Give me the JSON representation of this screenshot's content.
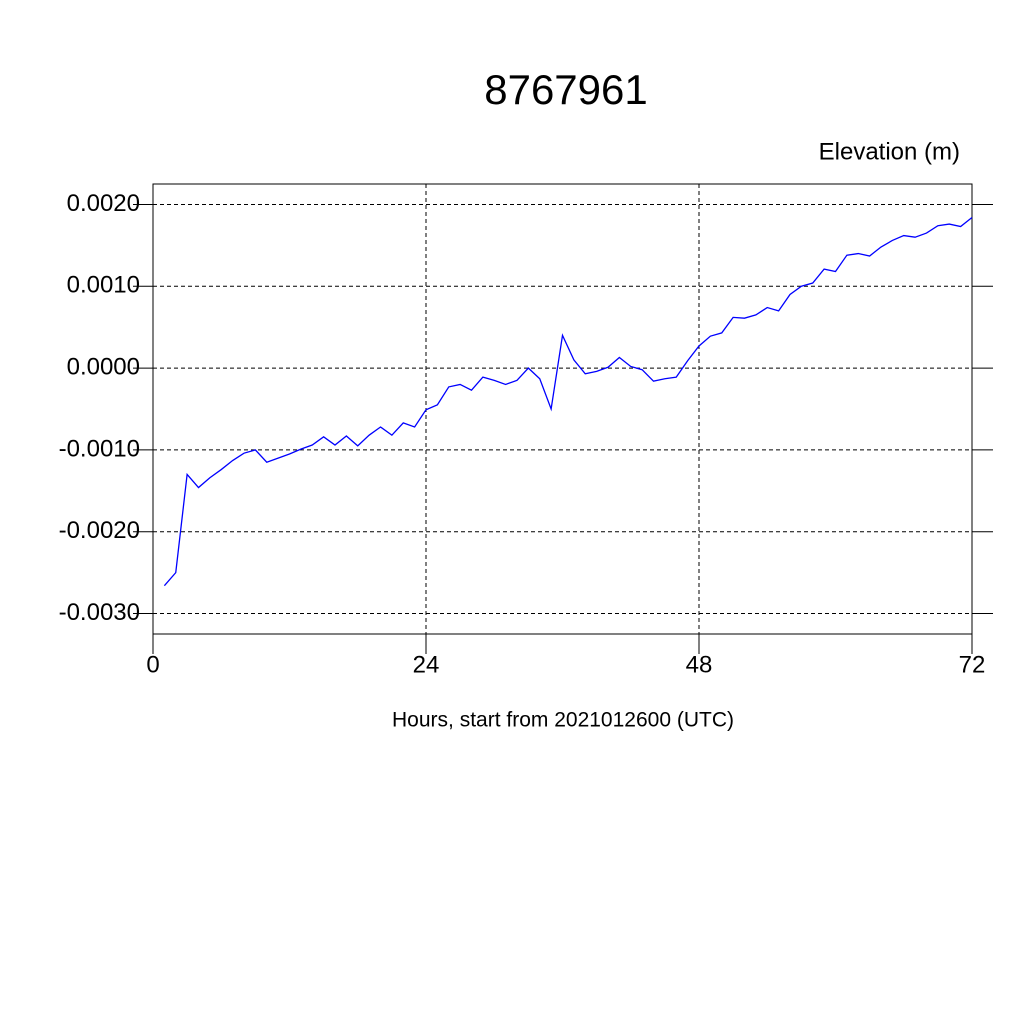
{
  "chart_data": {
    "type": "line",
    "title": "8767961",
    "y_label": "Elevation (m)",
    "x_label": "Hours, start from 2021012600 (UTC)",
    "x": [
      1,
      2,
      3,
      4,
      5,
      6,
      7,
      8,
      9,
      10,
      11,
      12,
      13,
      14,
      15,
      16,
      17,
      18,
      19,
      20,
      21,
      22,
      23,
      24,
      25,
      26,
      27,
      28,
      29,
      30,
      31,
      32,
      33,
      34,
      35,
      36,
      37,
      38,
      39,
      40,
      41,
      42,
      43,
      44,
      45,
      46,
      47,
      48,
      49,
      50,
      51,
      52,
      53,
      54,
      55,
      56,
      57,
      58,
      59,
      60,
      61,
      62,
      63,
      64,
      65,
      66,
      67,
      68,
      69,
      70,
      71,
      72
    ],
    "series": [
      {
        "color": "#0000ff",
        "values": [
          -0.00266,
          -0.0025,
          -0.0013,
          -0.00146,
          -0.00134,
          -0.00124,
          -0.00113,
          -0.00104,
          -0.001,
          -0.00115,
          -0.0011,
          -0.00105,
          -0.00099,
          -0.00094,
          -0.00084,
          -0.00094,
          -0.00083,
          -0.00095,
          -0.00082,
          -0.00072,
          -0.00082,
          -0.00067,
          -0.00072,
          -0.00051,
          -0.00045,
          -0.00023,
          -0.0002,
          -0.00027,
          -0.00011,
          -0.00015,
          -0.0002,
          -0.00015,
          0,
          -0.00013,
          -0.0005,
          0.0004,
          0.0001,
          -7e-05,
          -4e-05,
          1e-05,
          0.00013,
          2e-05,
          -2e-05,
          -0.00016,
          -0.00013,
          -0.00011,
          9e-05,
          0.00027,
          0.00039,
          0.00043,
          0.00062,
          0.00061,
          0.00065,
          0.00074,
          0.0007,
          0.0009,
          0.001,
          0.00104,
          0.00121,
          0.00118,
          0.00138,
          0.0014,
          0.00137,
          0.00148,
          0.00156,
          0.00162,
          0.0016,
          0.00165,
          0.00174,
          0.00176,
          0.00173,
          0.00184
        ]
      }
    ],
    "xlim": [
      0,
      72
    ],
    "xticks": [
      0,
      24,
      48,
      72
    ],
    "ylim": [
      -0.00325,
      0.00225
    ],
    "yticks": [
      {
        "value": -0.003,
        "label": "-0.0030"
      },
      {
        "value": -0.002,
        "label": "-0.0020"
      },
      {
        "value": -0.001,
        "label": "-0.0010"
      },
      {
        "value": 0,
        "label": "0.0000"
      },
      {
        "value": 0.001,
        "label": "0.0010"
      },
      {
        "value": 0.002,
        "label": "0.0020"
      }
    ],
    "grid": true
  }
}
